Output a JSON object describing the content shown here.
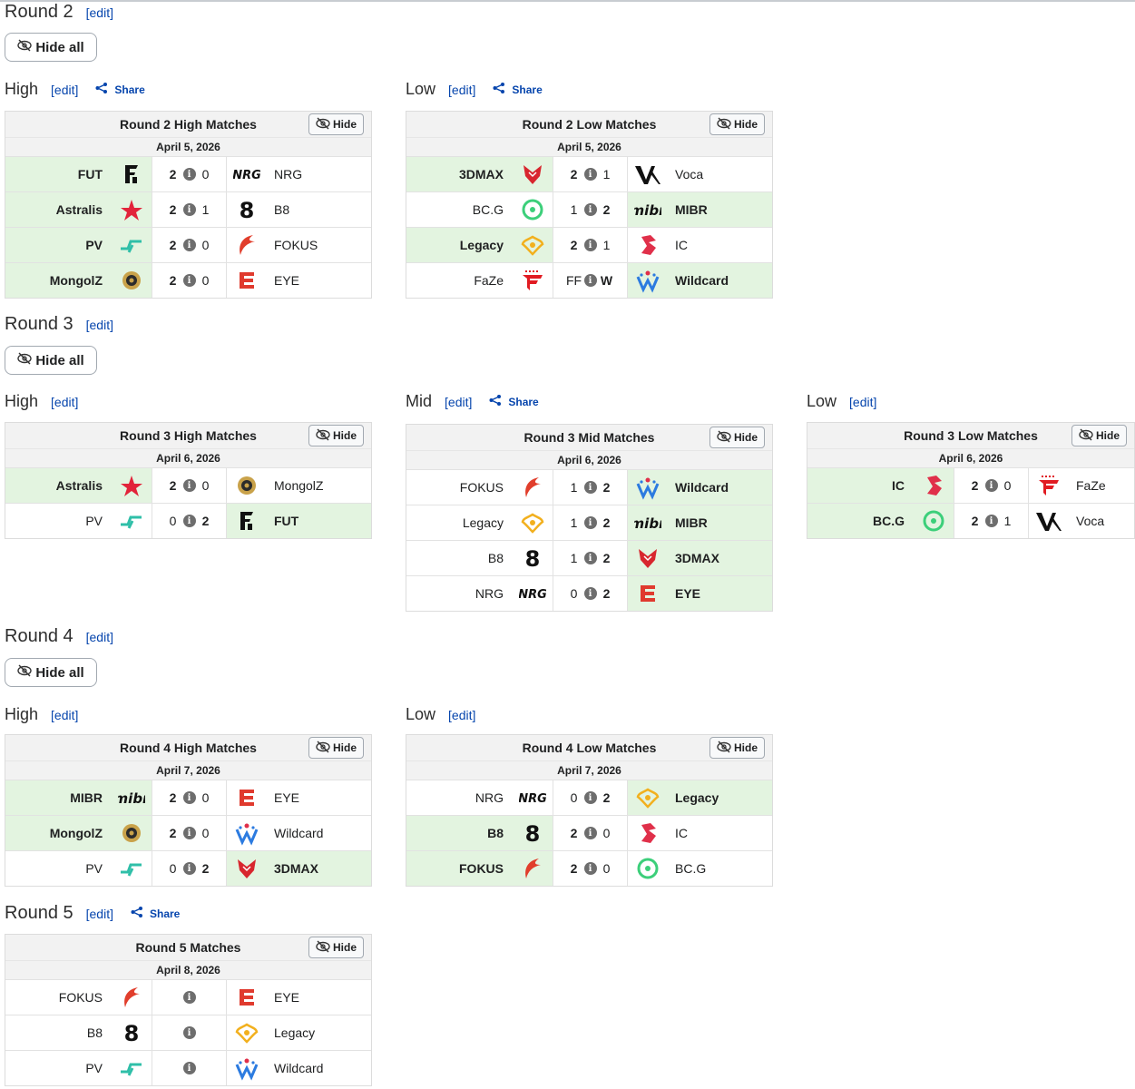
{
  "edit_label": "[edit]",
  "share_label": "Share",
  "hide_all_label": "Hide all",
  "hide_label": "Hide",
  "colors": {
    "win_bg": "#e3f4e0",
    "link": "#0645ad"
  },
  "rounds": [
    {
      "title": "Round 2",
      "sections": [
        {
          "title": "High",
          "share": true,
          "matches_title": "Round 2 High Matches",
          "date": "April 5, 2026",
          "matches": [
            {
              "left": "FUT",
              "left_logo": "fut-logo",
              "ls": "2",
              "rs": "0",
              "right": "NRG",
              "right_logo": "nrg-logo",
              "winner": "left"
            },
            {
              "left": "Astralis",
              "left_logo": "astralis-logo",
              "ls": "2",
              "rs": "1",
              "right": "B8",
              "right_logo": "b8-logo",
              "winner": "left"
            },
            {
              "left": "PV",
              "left_logo": "pv-logo",
              "ls": "2",
              "rs": "0",
              "right": "FOKUS",
              "right_logo": "fokus-logo",
              "winner": "left"
            },
            {
              "left": "MongolZ",
              "left_logo": "mongolz-logo",
              "ls": "2",
              "rs": "0",
              "right": "EYE",
              "right_logo": "eye-logo",
              "winner": "left"
            }
          ]
        },
        {
          "title": "Low",
          "share": true,
          "matches_title": "Round 2 Low Matches",
          "date": "April 5, 2026",
          "matches": [
            {
              "left": "3DMAX",
              "left_logo": "3dmax-logo",
              "ls": "2",
              "rs": "1",
              "right": "Voca",
              "right_logo": "voca-logo",
              "winner": "left"
            },
            {
              "left": "BC.G",
              "left_logo": "bcg-logo",
              "ls": "1",
              "rs": "2",
              "right": "MIBR",
              "right_logo": "mibr-logo",
              "winner": "right"
            },
            {
              "left": "Legacy",
              "left_logo": "legacy-logo",
              "ls": "2",
              "rs": "1",
              "right": "IC",
              "right_logo": "ic-logo",
              "winner": "left"
            },
            {
              "left": "FaZe",
              "left_logo": "faze-logo",
              "ls": "FF",
              "rs": "W",
              "right": "Wildcard",
              "right_logo": "wildcard-logo",
              "winner": "right"
            }
          ]
        }
      ]
    },
    {
      "title": "Round 3",
      "sections": [
        {
          "title": "High",
          "share": false,
          "matches_title": "Round 3 High Matches",
          "date": "April 6, 2026",
          "matches": [
            {
              "left": "Astralis",
              "left_logo": "astralis-logo",
              "ls": "2",
              "rs": "0",
              "right": "MongolZ",
              "right_logo": "mongolz-logo",
              "winner": "left"
            },
            {
              "left": "PV",
              "left_logo": "pv-logo",
              "ls": "0",
              "rs": "2",
              "right": "FUT",
              "right_logo": "fut-logo",
              "winner": "right"
            }
          ]
        },
        {
          "title": "Mid",
          "share": true,
          "matches_title": "Round 3 Mid Matches",
          "date": "April 6, 2026",
          "matches": [
            {
              "left": "FOKUS",
              "left_logo": "fokus-logo",
              "ls": "1",
              "rs": "2",
              "right": "Wildcard",
              "right_logo": "wildcard-logo",
              "winner": "right"
            },
            {
              "left": "Legacy",
              "left_logo": "legacy-logo",
              "ls": "1",
              "rs": "2",
              "right": "MIBR",
              "right_logo": "mibr-logo",
              "winner": "right"
            },
            {
              "left": "B8",
              "left_logo": "b8-logo",
              "ls": "1",
              "rs": "2",
              "right": "3DMAX",
              "right_logo": "3dmax-logo",
              "winner": "right"
            },
            {
              "left": "NRG",
              "left_logo": "nrg-logo",
              "ls": "0",
              "rs": "2",
              "right": "EYE",
              "right_logo": "eye-logo",
              "winner": "right"
            }
          ]
        },
        {
          "title": "Low",
          "share": false,
          "matches_title": "Round 3 Low Matches",
          "date": "April 6, 2026",
          "matches": [
            {
              "left": "IC",
              "left_logo": "ic-logo",
              "ls": "2",
              "rs": "0",
              "right": "FaZe",
              "right_logo": "faze-logo",
              "winner": "left"
            },
            {
              "left": "BC.G",
              "left_logo": "bcg-logo",
              "ls": "2",
              "rs": "1",
              "right": "Voca",
              "right_logo": "voca-logo",
              "winner": "left"
            }
          ]
        }
      ]
    },
    {
      "title": "Round 4",
      "sections": [
        {
          "title": "High",
          "share": false,
          "matches_title": "Round 4 High Matches",
          "date": "April 7, 2026",
          "matches": [
            {
              "left": "MIBR",
              "left_logo": "mibr-logo",
              "ls": "2",
              "rs": "0",
              "right": "EYE",
              "right_logo": "eye-logo",
              "winner": "left"
            },
            {
              "left": "MongolZ",
              "left_logo": "mongolz-logo",
              "ls": "2",
              "rs": "0",
              "right": "Wildcard",
              "right_logo": "wildcard-logo",
              "winner": "left"
            },
            {
              "left": "PV",
              "left_logo": "pv-logo",
              "ls": "0",
              "rs": "2",
              "right": "3DMAX",
              "right_logo": "3dmax-logo",
              "winner": "right"
            }
          ]
        },
        {
          "title": "Low",
          "share": false,
          "matches_title": "Round 4 Low Matches",
          "date": "April 7, 2026",
          "matches": [
            {
              "left": "NRG",
              "left_logo": "nrg-logo",
              "ls": "0",
              "rs": "2",
              "right": "Legacy",
              "right_logo": "legacy-logo",
              "winner": "right"
            },
            {
              "left": "B8",
              "left_logo": "b8-logo",
              "ls": "2",
              "rs": "0",
              "right": "IC",
              "right_logo": "ic-logo",
              "winner": "left"
            },
            {
              "left": "FOKUS",
              "left_logo": "fokus-logo",
              "ls": "2",
              "rs": "0",
              "right": "BC.G",
              "right_logo": "bcg-logo",
              "winner": "left"
            }
          ]
        }
      ]
    },
    {
      "title": "Round 5",
      "share": true,
      "sections": [
        {
          "title": "",
          "share": false,
          "matches_title": "Round 5 Matches",
          "date": "April 8, 2026",
          "matches": [
            {
              "left": "FOKUS",
              "left_logo": "fokus-logo",
              "ls": "",
              "rs": "",
              "right": "EYE",
              "right_logo": "eye-logo",
              "winner": ""
            },
            {
              "left": "B8",
              "left_logo": "b8-logo",
              "ls": "",
              "rs": "",
              "right": "Legacy",
              "right_logo": "legacy-logo",
              "winner": ""
            },
            {
              "left": "PV",
              "left_logo": "pv-logo",
              "ls": "",
              "rs": "",
              "right": "Wildcard",
              "right_logo": "wildcard-logo",
              "winner": ""
            }
          ]
        }
      ]
    }
  ]
}
